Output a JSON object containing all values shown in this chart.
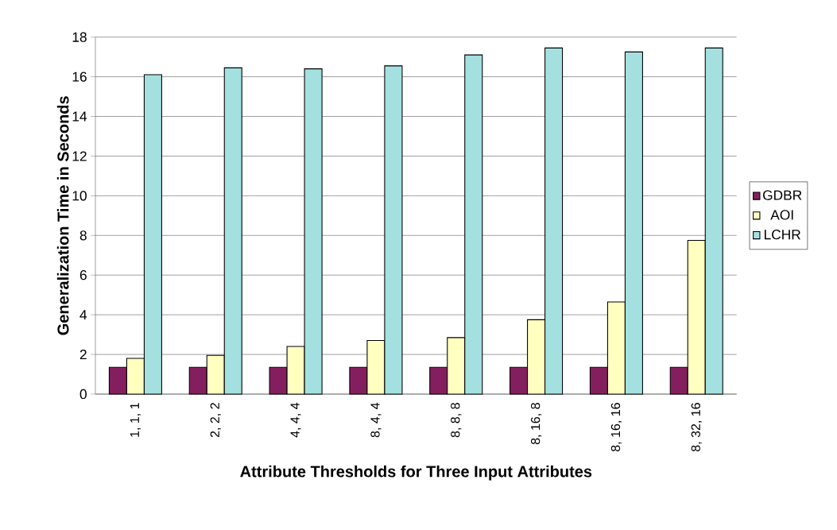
{
  "chart_data": {
    "type": "bar",
    "xlabel": "Attribute Thresholds for Three Input Attributes",
    "ylabel": "Generalization Time in Seconds",
    "categories": [
      "1, 1, 1",
      "2, 2, 2",
      "4, 4, 4",
      "8, 4, 4",
      "8, 8, 8",
      "8, 16, 8",
      "8, 16, 16",
      "8, 32, 16"
    ],
    "series": [
      {
        "name": "GDBR",
        "color": "#841f5f",
        "values": [
          1.35,
          1.35,
          1.35,
          1.35,
          1.35,
          1.35,
          1.35,
          1.35
        ]
      },
      {
        "name": "AOI",
        "color": "#ffffc0",
        "values": [
          1.8,
          1.95,
          2.4,
          2.7,
          2.85,
          3.75,
          4.65,
          7.75
        ]
      },
      {
        "name": "LCHR",
        "color": "#a4e0e0",
        "values": [
          16.1,
          16.45,
          16.4,
          16.55,
          17.1,
          17.45,
          17.25,
          17.45
        ]
      }
    ],
    "ylim": [
      0,
      18
    ],
    "yticks": [
      0,
      2,
      4,
      6,
      8,
      10,
      12,
      14,
      16,
      18
    ],
    "grid": "y",
    "legend": "right"
  }
}
